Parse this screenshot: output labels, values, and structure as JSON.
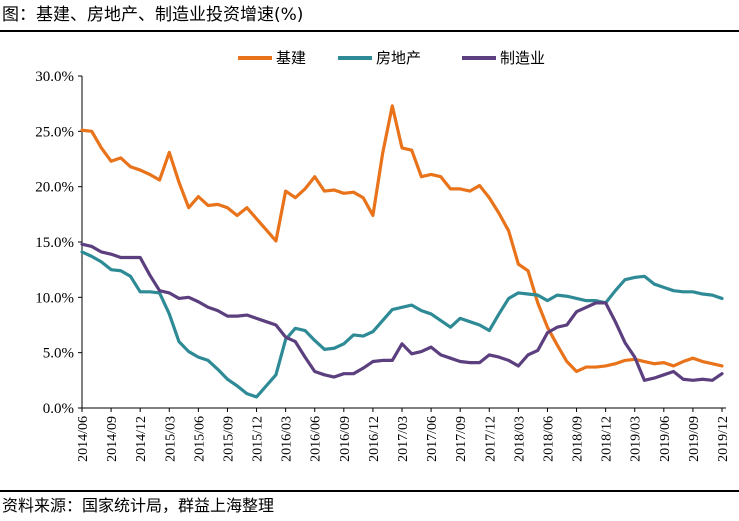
{
  "title": "图：基建、房地产、制造业投资增速(%)",
  "source": "资料来源：国家统计局，群益上海整理",
  "chart_data": {
    "type": "line",
    "xlabel": "",
    "ylabel": "",
    "ylim": [
      0,
      30
    ],
    "y_ticks": [
      "0.0%",
      "5.0%",
      "10.0%",
      "15.0%",
      "20.0%",
      "25.0%",
      "30.0%"
    ],
    "x_tick_labels": [
      "2014/06",
      "2014/09",
      "2014/12",
      "2015/03",
      "2015/06",
      "2015/09",
      "2015/12",
      "2016/03",
      "2016/06",
      "2016/09",
      "2016/12",
      "2017/03",
      "2017/06",
      "2017/09",
      "2017/12",
      "2018/03",
      "2018/06",
      "2018/09",
      "2018/12",
      "2019/03",
      "2019/06",
      "2019/09",
      "2019/12"
    ],
    "legend_position": "top-center",
    "grid": false,
    "x": [
      "2014/06",
      "2014/07",
      "2014/08",
      "2014/09",
      "2014/10",
      "2014/11",
      "2014/12",
      "2015/01",
      "2015/02",
      "2015/03",
      "2015/04",
      "2015/05",
      "2015/06",
      "2015/07",
      "2015/08",
      "2015/09",
      "2015/10",
      "2015/11",
      "2015/12",
      "2016/01",
      "2016/02",
      "2016/03",
      "2016/04",
      "2016/05",
      "2016/06",
      "2016/07",
      "2016/08",
      "2016/09",
      "2016/10",
      "2016/11",
      "2016/12",
      "2017/01",
      "2017/02",
      "2017/03",
      "2017/04",
      "2017/05",
      "2017/06",
      "2017/07",
      "2017/08",
      "2017/09",
      "2017/10",
      "2017/11",
      "2017/12",
      "2018/01",
      "2018/02",
      "2018/03",
      "2018/04",
      "2018/05",
      "2018/06",
      "2018/07",
      "2018/08",
      "2018/09",
      "2018/10",
      "2018/11",
      "2018/12",
      "2019/01",
      "2019/02",
      "2019/03",
      "2019/04",
      "2019/05",
      "2019/06",
      "2019/07",
      "2019/08",
      "2019/09",
      "2019/10",
      "2019/11",
      "2019/12"
    ],
    "series": [
      {
        "name": "基建",
        "color": "#E8731A",
        "values": [
          25.1,
          25.0,
          23.5,
          22.3,
          22.6,
          21.8,
          21.5,
          21.1,
          20.6,
          23.1,
          20.4,
          18.1,
          19.1,
          18.3,
          18.4,
          18.1,
          17.4,
          18.1,
          17.1,
          16.1,
          15.1,
          19.6,
          19.0,
          19.8,
          20.9,
          19.6,
          19.7,
          19.4,
          19.5,
          19.0,
          17.4,
          23.0,
          27.3,
          23.5,
          23.3,
          20.9,
          21.1,
          20.9,
          19.8,
          19.8,
          19.6,
          20.1,
          19.0,
          17.6,
          16.0,
          13.0,
          12.4,
          9.5,
          7.3,
          5.7,
          4.2,
          3.3,
          3.7,
          3.7,
          3.8,
          4.0,
          4.3,
          4.4,
          4.2,
          4.0,
          4.1,
          3.8,
          4.2,
          4.5,
          4.2,
          4.0,
          3.8
        ]
      },
      {
        "name": "房地产",
        "color": "#2E8B96",
        "values": [
          14.1,
          13.7,
          13.2,
          12.5,
          12.4,
          11.9,
          10.5,
          10.5,
          10.4,
          8.5,
          6.0,
          5.1,
          4.6,
          4.3,
          3.5,
          2.6,
          2.0,
          1.3,
          1.0,
          2.0,
          3.0,
          6.2,
          7.2,
          7.0,
          6.1,
          5.3,
          5.4,
          5.8,
          6.6,
          6.5,
          6.9,
          7.9,
          8.9,
          9.1,
          9.3,
          8.8,
          8.5,
          7.9,
          7.3,
          8.1,
          7.8,
          7.5,
          7.0,
          8.5,
          9.9,
          10.4,
          10.3,
          10.2,
          9.7,
          10.2,
          10.1,
          9.9,
          9.7,
          9.7,
          9.5,
          10.6,
          11.6,
          11.8,
          11.9,
          11.2,
          10.9,
          10.6,
          10.5,
          10.5,
          10.3,
          10.2,
          9.9
        ]
      },
      {
        "name": "制造业",
        "color": "#5B3F7E",
        "values": [
          14.8,
          14.6,
          14.1,
          13.9,
          13.6,
          13.6,
          13.6,
          12.0,
          10.6,
          10.4,
          9.9,
          10.0,
          9.6,
          9.1,
          8.8,
          8.3,
          8.3,
          8.4,
          8.1,
          7.8,
          7.5,
          6.4,
          6.0,
          4.6,
          3.3,
          3.0,
          2.8,
          3.1,
          3.1,
          3.6,
          4.2,
          4.3,
          4.3,
          5.8,
          4.9,
          5.1,
          5.5,
          4.8,
          4.5,
          4.2,
          4.1,
          4.1,
          4.8,
          4.6,
          4.3,
          3.8,
          4.8,
          5.2,
          6.8,
          7.3,
          7.5,
          8.7,
          9.1,
          9.5,
          9.5,
          7.8,
          5.9,
          4.6,
          2.5,
          2.7,
          3.0,
          3.3,
          2.6,
          2.5,
          2.6,
          2.5,
          3.1
        ]
      }
    ]
  }
}
